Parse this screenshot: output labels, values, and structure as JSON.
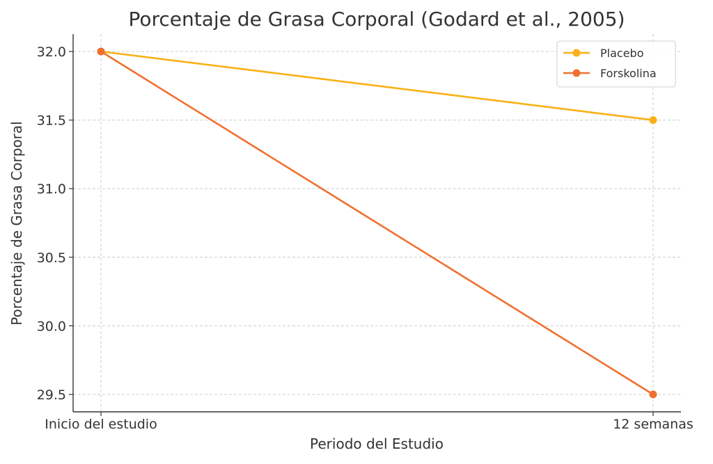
{
  "chart_data": {
    "type": "line",
    "title": "Porcentaje de Grasa Corporal (Godard et al., 2005)",
    "xlabel": "Periodo del Estudio",
    "ylabel": "Porcentaje de Grasa Corporal",
    "categories": [
      "Inicio del estudio",
      "12 semanas"
    ],
    "ylim": [
      29.5,
      32.0
    ],
    "yticks": [
      29.5,
      30.0,
      30.5,
      31.0,
      31.5,
      32.0
    ],
    "ytick_labels": [
      "29.5",
      "30.0",
      "30.5",
      "31.0",
      "31.5",
      "32.0"
    ],
    "grid": true,
    "legend_position": "top-right",
    "series": [
      {
        "name": "Placebo",
        "values": [
          32.0,
          31.5
        ],
        "color": "#f9b115"
      },
      {
        "name": "Forskolina",
        "values": [
          32.0,
          29.5
        ],
        "color": "#f07030"
      }
    ]
  }
}
